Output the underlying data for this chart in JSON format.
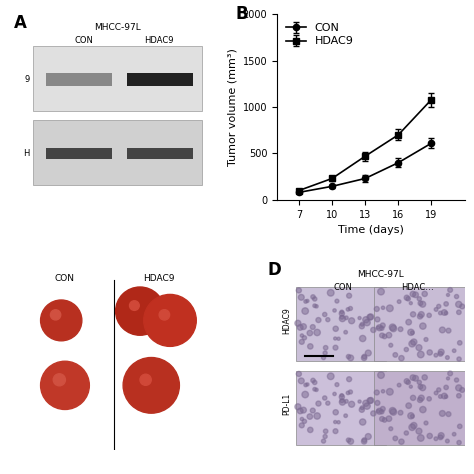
{
  "panel_b": {
    "xlabel": "Time (days)",
    "ylabel": "Tumor volume (mm³)",
    "xlim": [
      5,
      22
    ],
    "ylim": [
      0,
      2000
    ],
    "yticks": [
      0,
      500,
      1000,
      1500,
      2000
    ],
    "xticks": [
      7,
      10,
      13,
      16,
      19
    ],
    "con": {
      "x": [
        7,
        10,
        13,
        16,
        19
      ],
      "y": [
        80,
        145,
        230,
        400,
        610
      ],
      "yerr": [
        12,
        18,
        35,
        45,
        55
      ],
      "label": "CON",
      "marker": "o"
    },
    "hdac9": {
      "x": [
        7,
        10,
        13,
        16,
        19
      ],
      "y": [
        100,
        230,
        470,
        700,
        1080
      ],
      "yerr": [
        15,
        28,
        50,
        60,
        75
      ],
      "label": "HDAC9",
      "marker": "s"
    }
  },
  "panel_a": {
    "title": "MHCC-97L",
    "col1": "CON",
    "col2": "HDAC9",
    "row1_label": "9",
    "row2_label": "H",
    "band1_color": "#505050",
    "band2_color": "#404040",
    "bg_color": "#d8d8d8",
    "box_bg": "#e8e8e8"
  },
  "panel_c": {
    "col1": "CON",
    "col2": "HDAC9",
    "bg_color": "#f0f0f0",
    "tumor_color": "#c0392b"
  },
  "panel_d": {
    "title": "MHCC-97L",
    "col1": "CON",
    "col2": "HDAC…",
    "row1_label": "HDAC9",
    "row2_label": "PD-L1",
    "ihc_color": "#d4c5e2"
  },
  "bg": "#ffffff",
  "label_fontsize": 12,
  "axis_fontsize": 8,
  "tick_fontsize": 7,
  "legend_fontsize": 8
}
